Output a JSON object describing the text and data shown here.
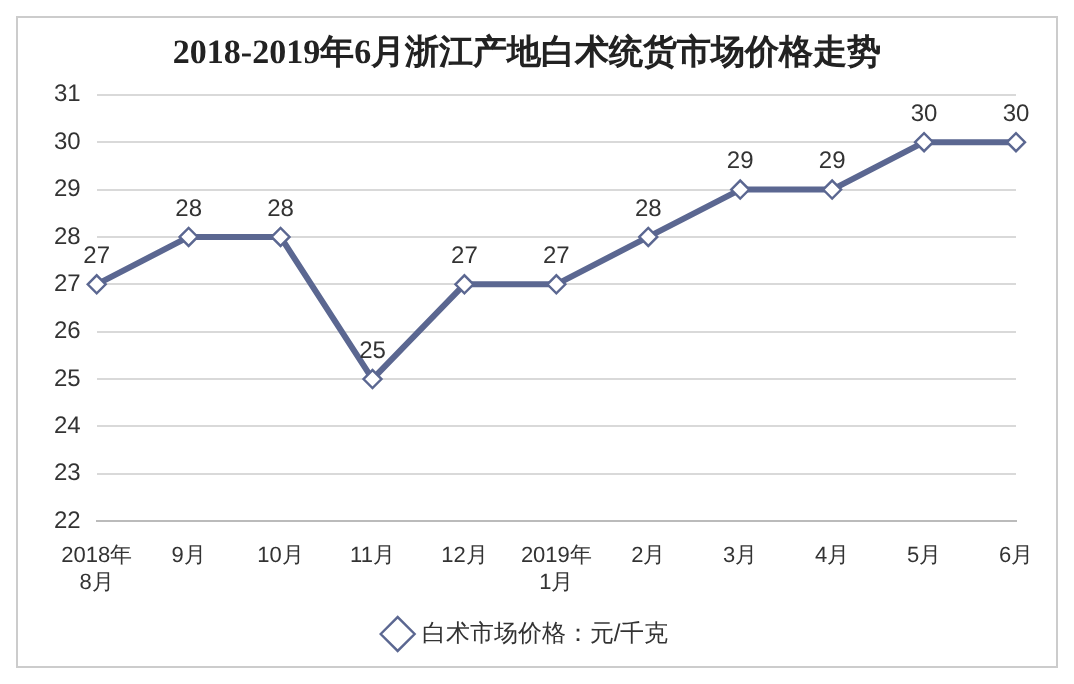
{
  "chart_data": {
    "type": "line",
    "title": "2018-2019年6月浙江产地白术统货市场价格走势",
    "categories": [
      "2018年\n8月",
      "9月",
      "10月",
      "11月",
      "12月",
      "2019年\n1月",
      "2月",
      "3月",
      "4月",
      "5月",
      "6月"
    ],
    "series": [
      {
        "name": "白术市场价格：元/千克",
        "color": "#5b6791",
        "values": [
          27,
          28,
          28,
          25,
          27,
          27,
          28,
          29,
          29,
          30,
          30
        ]
      }
    ],
    "ylim": [
      22,
      31
    ],
    "yticks": [
      22,
      23,
      24,
      25,
      26,
      27,
      28,
      29,
      30,
      31
    ],
    "grid": "y",
    "legend": "bottom",
    "marker": "diamond",
    "line_style": "solid",
    "data_labels": true
  }
}
